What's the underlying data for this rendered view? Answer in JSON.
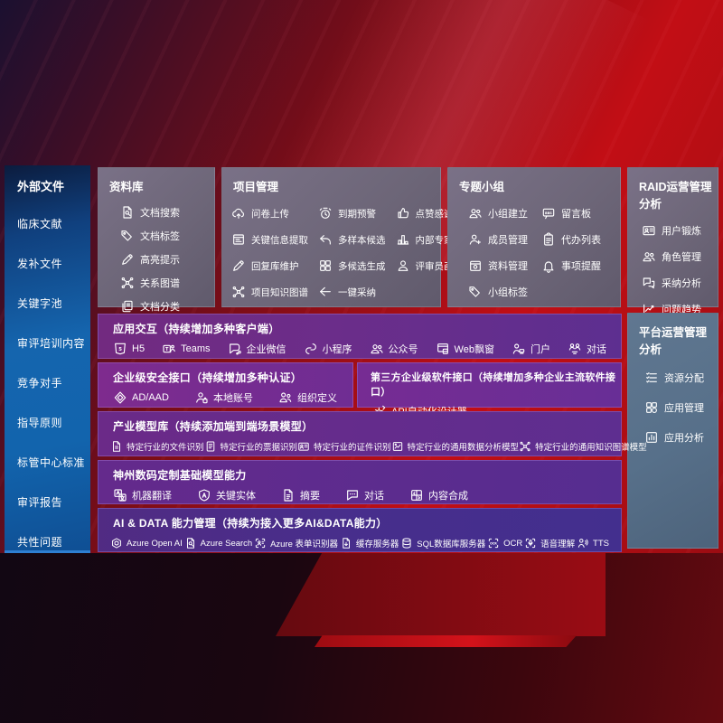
{
  "colors": {
    "background_red": "#b50d14",
    "sidebar_blue": "#1465af",
    "panel_gray": "#6e6878",
    "panel_bluegray": "#57708a",
    "row_purple": "#6e2b8b",
    "row_magenta": "#7d2b90",
    "row_violet": "#472e8c",
    "text": "#ffffff"
  },
  "sidebar": {
    "title": "外部文件",
    "items": [
      "临床文献",
      "发补文件",
      "关键字池",
      "审评培训内容",
      "竞争对手",
      "指导原则",
      "标管中心标准",
      "审评报告",
      "共性问题"
    ]
  },
  "library": {
    "title": "资料库",
    "items": [
      {
        "label": "文档搜索",
        "icon": "doc-search"
      },
      {
        "label": "文档标签",
        "icon": "tag"
      },
      {
        "label": "高亮提示",
        "icon": "pen"
      },
      {
        "label": "关系图谱",
        "icon": "network"
      },
      {
        "label": "文档分类",
        "icon": "docs"
      }
    ]
  },
  "project": {
    "title": "项目管理",
    "columns": [
      [
        {
          "label": "问卷上传",
          "icon": "cloud-upload"
        },
        {
          "label": "关键信息提取",
          "icon": "window-lines"
        },
        {
          "label": "回复库维护",
          "icon": "pen"
        },
        {
          "label": "项目知识图谱",
          "icon": "network"
        }
      ],
      [
        {
          "label": "到期预警",
          "icon": "alarm"
        },
        {
          "label": "多样本候选",
          "icon": "reply-arrow"
        },
        {
          "label": "多候选生成",
          "icon": "grid-4"
        },
        {
          "label": "一键采纳",
          "icon": "arrow-left"
        }
      ],
      [
        {
          "label": "点赞感谢",
          "icon": "thumbs-up"
        },
        {
          "label": "内部专家排名",
          "icon": "bar-rank"
        },
        {
          "label": "评审员画像",
          "icon": "person"
        }
      ]
    ]
  },
  "groups": {
    "title": "专题小组",
    "columns": [
      [
        {
          "label": "小组建立",
          "icon": "people"
        },
        {
          "label": "成员管理",
          "icon": "person-add"
        },
        {
          "label": "资料管理",
          "icon": "archive-box"
        },
        {
          "label": "小组标签",
          "icon": "tag"
        }
      ],
      [
        {
          "label": "留言板",
          "icon": "bbs-board"
        },
        {
          "label": "代办列表",
          "icon": "clipboard"
        },
        {
          "label": "事项提醒",
          "icon": "bell"
        }
      ]
    ]
  },
  "raid": {
    "title": "RAID运营管理分析",
    "items": [
      {
        "label": "用户锻炼",
        "icon": "id-card"
      },
      {
        "label": "角色管理",
        "icon": "people"
      },
      {
        "label": "采纳分析",
        "icon": "chat-qa"
      },
      {
        "label": "问题趋势",
        "icon": "trend-chart"
      }
    ]
  },
  "platform": {
    "title": "平台运营管理分析",
    "items": [
      {
        "label": "资源分配",
        "icon": "list-check"
      },
      {
        "label": "应用管理",
        "icon": "app-grid"
      },
      {
        "label": "应用分析",
        "icon": "app-chart"
      }
    ]
  },
  "rows": {
    "interaction": {
      "title": "应用交互（持续增加多种客户端）",
      "items": [
        {
          "label": "H5",
          "icon": "h5"
        },
        {
          "label": "Teams",
          "icon": "teams"
        },
        {
          "label": "企业微信",
          "icon": "chat-bubble"
        },
        {
          "label": "小程序",
          "icon": "mini-program"
        },
        {
          "label": "公众号",
          "icon": "people"
        },
        {
          "label": "Web飘窗",
          "icon": "web-window"
        },
        {
          "label": "门户",
          "icon": "portal-person"
        },
        {
          "label": "对话",
          "icon": "dialog-people"
        }
      ]
    },
    "security": {
      "title": "企业级安全接口（持续增加多种认证）",
      "items": [
        {
          "label": "AD/AAD",
          "icon": "shield-diamond"
        },
        {
          "label": "本地账号",
          "icon": "person-badge"
        },
        {
          "label": "组织定义",
          "icon": "org-people"
        }
      ]
    },
    "thirdparty": {
      "title": "第三方企业级软件接口（持续增加多种企业主流软件接口）",
      "items": [
        {
          "label": "API自动化设计器",
          "icon": "api-gear"
        }
      ]
    },
    "models": {
      "title": "产业模型库（持续添加端到端场景模型）",
      "items": [
        {
          "label": "特定行业的文件识别",
          "icon": "doc-lines"
        },
        {
          "label": "特定行业的票据识别",
          "icon": "receipt"
        },
        {
          "label": "特定行业的证件识别",
          "icon": "id-card"
        },
        {
          "label": "特定行业的通用数据分析模型",
          "icon": "image-chart"
        },
        {
          "label": "特定行业的通用知识图谱模型",
          "icon": "network"
        }
      ]
    },
    "foundation": {
      "title": "神州数码定制基础模型能力",
      "items": [
        {
          "label": "机器翻译",
          "icon": "translate"
        },
        {
          "label": "关键实体",
          "icon": "a-shield"
        },
        {
          "label": "摘要",
          "icon": "doc-summary"
        },
        {
          "label": "对话",
          "icon": "chat-dots"
        },
        {
          "label": "内容合成",
          "icon": "grid-merge"
        }
      ]
    },
    "aidata": {
      "title": "AI & DATA 能力管理（持续为接入更多AI&DATA能力）",
      "items": [
        {
          "label": "Azure Open AI",
          "icon": "openai"
        },
        {
          "label": "Azure Search",
          "icon": "doc-search"
        },
        {
          "label": "Azure 表单识别器",
          "icon": "form-scan"
        },
        {
          "label": "缓存服务器",
          "icon": "cache-doc"
        },
        {
          "label": "SQL数据库服务器",
          "icon": "database"
        },
        {
          "label": "OCR",
          "icon": "ocr-scan"
        },
        {
          "label": "语音理解",
          "icon": "speech-mic"
        },
        {
          "label": "TTS",
          "icon": "tts-person"
        }
      ]
    }
  }
}
